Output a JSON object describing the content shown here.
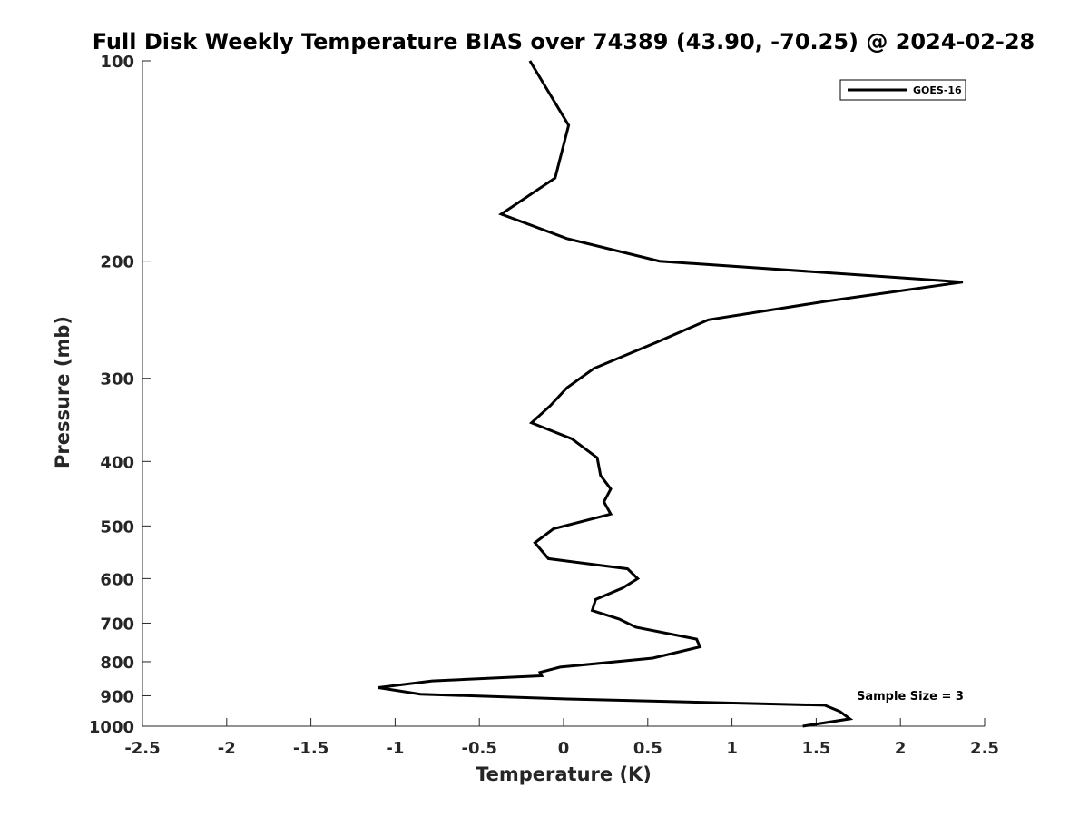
{
  "chart_data": {
    "type": "line",
    "title": "Full Disk Weekly Temperature BIAS over 74389 (43.90, -70.25) @ 2024-02-28",
    "xlabel": "Temperature (K)",
    "ylabel": "Pressure (mb)",
    "xlim": [
      -2.5,
      2.5
    ],
    "ylim": [
      100,
      1000
    ],
    "y_scale": "log",
    "y_reversed": true,
    "x_ticks": [
      -2.5,
      -2,
      -1.5,
      -1,
      -0.5,
      0,
      0.5,
      1,
      1.5,
      2,
      2.5
    ],
    "x_tick_labels": [
      "-2.5",
      "-2",
      "-1.5",
      "-1",
      "-0.5",
      "0",
      "0.5",
      "1",
      "1.5",
      "2",
      "2.5"
    ],
    "y_ticks": [
      100,
      200,
      300,
      400,
      500,
      600,
      700,
      800,
      900,
      1000
    ],
    "y_tick_labels": [
      "100",
      "200",
      "300",
      "400",
      "500",
      "600",
      "700",
      "800",
      "900",
      "1000"
    ],
    "grid": false,
    "legend": {
      "position": "top-right"
    },
    "annotation": "Sample Size = 3",
    "series": [
      {
        "name": "GOES-16",
        "color": "#000000",
        "points": [
          [
            -0.2,
            100
          ],
          [
            0.03,
            125
          ],
          [
            -0.05,
            150
          ],
          [
            -0.37,
            170
          ],
          [
            0.02,
            185
          ],
          [
            0.57,
            200
          ],
          [
            2.37,
            215
          ],
          [
            1.55,
            230
          ],
          [
            0.86,
            245
          ],
          [
            0.55,
            265
          ],
          [
            0.18,
            290
          ],
          [
            0.02,
            310
          ],
          [
            -0.08,
            330
          ],
          [
            -0.19,
            350
          ],
          [
            0.05,
            370
          ],
          [
            0.2,
            395
          ],
          [
            0.22,
            420
          ],
          [
            0.28,
            440
          ],
          [
            0.24,
            460
          ],
          [
            0.28,
            480
          ],
          [
            -0.06,
            505
          ],
          [
            -0.17,
            530
          ],
          [
            -0.09,
            560
          ],
          [
            0.38,
            580
          ],
          [
            0.44,
            600
          ],
          [
            0.35,
            620
          ],
          [
            0.19,
            645
          ],
          [
            0.17,
            670
          ],
          [
            0.33,
            690
          ],
          [
            0.43,
            710
          ],
          [
            0.79,
            740
          ],
          [
            0.81,
            760
          ],
          [
            0.53,
            790
          ],
          [
            -0.02,
            815
          ],
          [
            -0.14,
            830
          ],
          [
            -0.13,
            840
          ],
          [
            -0.78,
            855
          ],
          [
            -1.1,
            875
          ],
          [
            -0.85,
            895
          ],
          [
            0.02,
            910
          ],
          [
            1.55,
            930
          ],
          [
            1.64,
            950
          ],
          [
            1.7,
            975
          ],
          [
            1.42,
            1000
          ]
        ]
      }
    ]
  }
}
